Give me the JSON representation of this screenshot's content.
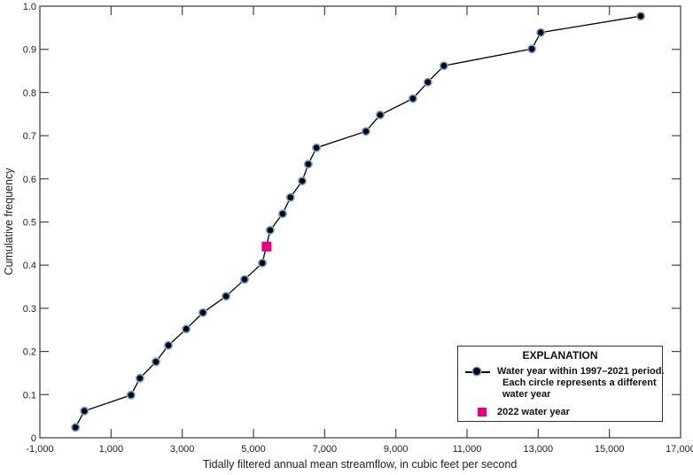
{
  "chart_data": {
    "type": "line",
    "title": "",
    "xlabel": "Tidally filtered annual mean streamflow, in cubic feet per second",
    "ylabel": "Cumulative frequency",
    "xlim": [
      -1000,
      17000
    ],
    "ylim": [
      0,
      1.0
    ],
    "x_ticks": [
      "-1,000",
      "1,000",
      "3,000",
      "5,000",
      "7,000",
      "9,000",
      "11,000",
      "13,000",
      "15,000",
      "17,000"
    ],
    "y_ticks": [
      "0",
      "0.1",
      "0.2",
      "0.3",
      "0.4",
      "0.5",
      "0.6",
      "0.7",
      "0.8",
      "0.9",
      "1.0"
    ],
    "grid": false,
    "legend_position": "lower right",
    "series": [
      {
        "name": "Water year within 1997–2021 period. Each circle represents a different water year",
        "marker": "circle",
        "color": "#000000",
        "marker_edge": "#6fa8dc",
        "x": [
          0,
          250,
          1560,
          1810,
          2260,
          2610,
          3110,
          3580,
          4230,
          4750,
          5250,
          5470,
          5820,
          6040,
          6370,
          6540,
          6770,
          8160,
          8560,
          9480,
          9900,
          10350,
          12820,
          13070,
          15880
        ],
        "y": [
          0.024,
          0.062,
          0.099,
          0.138,
          0.176,
          0.214,
          0.252,
          0.29,
          0.328,
          0.367,
          0.405,
          0.481,
          0.519,
          0.557,
          0.595,
          0.634,
          0.672,
          0.71,
          0.748,
          0.786,
          0.824,
          0.862,
          0.901,
          0.939,
          0.977
        ]
      },
      {
        "name": "2022 water year",
        "marker": "square",
        "color": "#e6007e",
        "x": [
          5370
        ],
        "y": [
          0.443
        ]
      }
    ]
  },
  "legend": {
    "title": "EXPLANATION",
    "item1_line1": "Water year within 1997–2021 period.",
    "item1_line2": "Each circle represents a different",
    "item1_line3": "water year",
    "item2": "2022 water year"
  }
}
